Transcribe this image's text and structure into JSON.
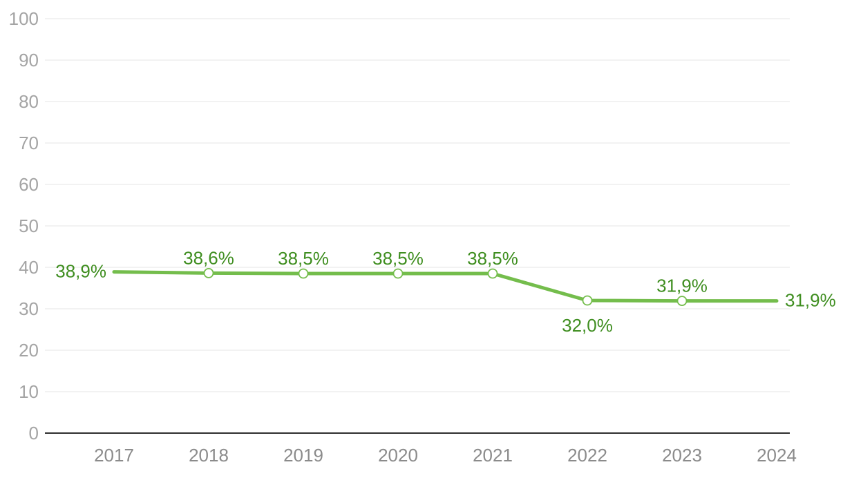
{
  "chart_data": {
    "type": "line",
    "title": "",
    "xlabel": "",
    "ylabel": "",
    "categories": [
      "2017",
      "2018",
      "2019",
      "2020",
      "2021",
      "2022",
      "2023",
      "2024"
    ],
    "series": [
      {
        "name": "percentage-series",
        "values": [
          38.9,
          38.6,
          38.5,
          38.5,
          38.5,
          32.0,
          31.9,
          31.9
        ],
        "labels": [
          "38,9%",
          "38,6%",
          "38,5%",
          "38,5%",
          "38,5%",
          "32,0%",
          "31,9%",
          "31,9%"
        ],
        "label_placement": [
          "left",
          "above",
          "above",
          "above",
          "above",
          "below",
          "above",
          "right"
        ],
        "markers": [
          false,
          true,
          true,
          true,
          true,
          true,
          true,
          false
        ]
      }
    ],
    "ylim": [
      0,
      100
    ],
    "yticks": [
      0,
      10,
      20,
      30,
      40,
      50,
      60,
      70,
      80,
      90,
      100
    ],
    "ytick_labels": [
      "0",
      "10",
      "20",
      "30",
      "40",
      "50",
      "60",
      "70",
      "80",
      "90",
      "100"
    ],
    "grid": true,
    "legend": "none"
  },
  "colors": {
    "line": "#74bd4c",
    "marker_fill": "#ffffff",
    "value_label": "#3f8e20",
    "grid": "#e6e6e6",
    "axis": "#2e2e2e",
    "ytick_text": "#a4a4a4",
    "xtick_text": "#8b8b8b",
    "background": "#ffffff"
  }
}
